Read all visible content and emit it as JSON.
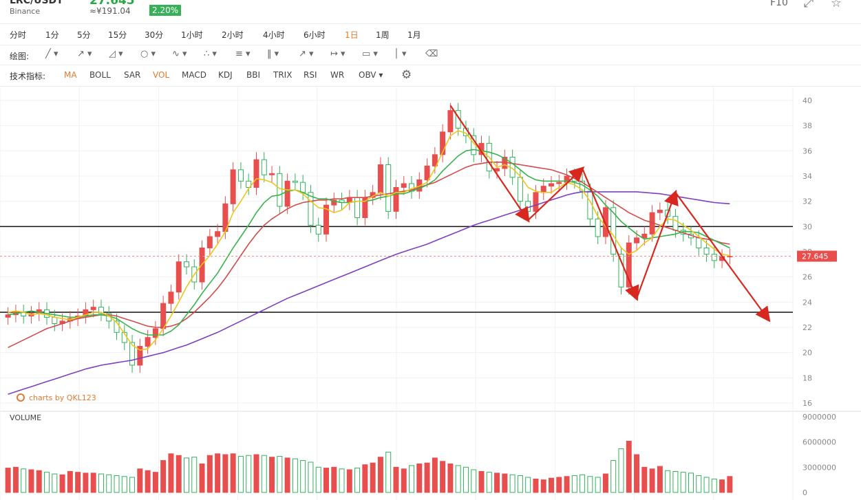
{
  "header": {
    "pair": "LRC/USDT",
    "price": "27.645",
    "exchange": "Binance",
    "cny": "≈¥191.04",
    "change": "2.20%",
    "f10": "F10"
  },
  "timeframes": [
    "分时",
    "1分",
    "5分",
    "15分",
    "30分",
    "1小时",
    "2小时",
    "4小时",
    "6小时",
    "1日",
    "1周",
    "1月"
  ],
  "active_timeframe": "1日",
  "drawing": {
    "label": "绘图:",
    "tools": [
      "line-tool-icon",
      "ray-tool-icon",
      "channel-tool-icon",
      "ellipse-tool-icon",
      "wave-tool-icon",
      "pattern-tool-icon",
      "fib-tool-icon",
      "parallel-tool-icon",
      "arrow-tool-icon",
      "measure-tool-icon",
      "comment-tool-icon",
      "bar-tool-icon",
      "trash-icon"
    ]
  },
  "indicators": {
    "label": "技术指标:",
    "items": [
      "MA",
      "BOLL",
      "SAR",
      "VOL",
      "MACD",
      "KDJ",
      "BBI",
      "TRIX",
      "RSI",
      "WR",
      "OBV"
    ],
    "active": [
      "MA",
      "VOL"
    ]
  },
  "colors": {
    "up": "#e84e4e",
    "down": "#2fb35a",
    "ma5": "#f0c419",
    "ma10": "#37b34a",
    "ma20": "#d24b4b",
    "ma60": "#7b3fbf",
    "arrow": "#d8271f"
  },
  "chart_data": {
    "type": "candlestick",
    "y_range": [
      16,
      40
    ],
    "y_ticks": [
      40,
      38,
      36,
      34,
      32,
      30,
      28,
      26,
      24,
      22,
      20,
      18,
      16
    ],
    "current_price": "27.645",
    "watermark": "charts by QKL123",
    "volume_label": "VOLUME",
    "volume_ticks": [
      "9000000",
      "6000000",
      "3000000",
      "0"
    ],
    "volume_range": [
      0,
      9000000
    ],
    "horizontal_levels": [
      30,
      23.2
    ],
    "closes": [
      23,
      23.2,
      22.9,
      23.1,
      23.4,
      22.8,
      22.3,
      22.5,
      22.7,
      22.9,
      23.4,
      23.6,
      23.1,
      22.5,
      21.6,
      20.8,
      19,
      20.5,
      21.2,
      21.9,
      23.9,
      24.8,
      27.2,
      26.8,
      25.6,
      28.3,
      29.2,
      29.6,
      31.8,
      34.5,
      33.6,
      33.1,
      35.3,
      34.1,
      34.2,
      31.6,
      33.6,
      33.5,
      32.7,
      30.1,
      29.4,
      31.7,
      32.1,
      31.9,
      32.3,
      30.7,
      32.3,
      32.7,
      34.9,
      31.2,
      33.1,
      33.4,
      32.8,
      33.7,
      34.8,
      35.7,
      37.5,
      39.2,
      37.8,
      37.2,
      35.7,
      36.6,
      34.4,
      34.6,
      35.5,
      33.9,
      32,
      31.2,
      32.7,
      33.2,
      33.4,
      33.5,
      34,
      33.6,
      32.8,
      30.6,
      29.2,
      31.5,
      27.8,
      25.2,
      28.7,
      29.1,
      29.4,
      31.1,
      31.3,
      30.8,
      29.7,
      29.4,
      29.1,
      28.3,
      27.8,
      27.3,
      27.6,
      27.645
    ],
    "ma5": [
      23.2,
      23.3,
      23.2,
      23.0,
      23.1,
      23.0,
      22.8,
      22.7,
      22.6,
      22.8,
      23.0,
      23.2,
      23.2,
      22.9,
      22.4,
      21.5,
      20.6,
      20.2,
      20.3,
      21.0,
      21.9,
      22.9,
      24.0,
      25.2,
      26.2,
      27.0,
      27.7,
      28.6,
      29.6,
      31.1,
      32.0,
      33.0,
      33.8,
      33.7,
      33.5,
      33.0,
      32.9,
      32.9,
      32.6,
      32.0,
      31.5,
      31.4,
      31.1,
      31.3,
      31.9,
      32.0,
      32.0,
      32.4,
      32.7,
      32.4,
      32.7,
      32.7,
      33.0,
      33.2,
      33.5,
      34.6,
      35.9,
      37.2,
      37.6,
      37.4,
      36.6,
      36.0,
      35.5,
      34.7,
      34.9,
      34.6,
      34.0,
      33.1,
      32.8,
      32.7,
      32.7,
      33.1,
      33.5,
      33.3,
      32.9,
      32.0,
      30.8,
      30.0,
      29.3,
      28.3,
      27.8,
      28.1,
      28.7,
      29.1,
      30.0,
      30.6,
      30.5,
      30.1,
      29.7,
      29.2,
      28.7,
      28.2,
      27.8,
      27.7
    ],
    "ma10": [
      23.0,
      23.1,
      23.2,
      23.3,
      23.2,
      23.1,
      23.0,
      22.9,
      22.8,
      22.8,
      22.9,
      23.0,
      23.0,
      22.9,
      22.7,
      22.3,
      21.9,
      21.6,
      21.4,
      21.4,
      21.4,
      21.7,
      22.2,
      23.0,
      23.8,
      24.7,
      25.5,
      26.3,
      27.3,
      28.3,
      29.2,
      30.1,
      31.1,
      31.9,
      32.4,
      32.5,
      32.8,
      32.9,
      32.7,
      32.4,
      32.2,
      32.2,
      32.0,
      31.9,
      31.9,
      32.0,
      32.0,
      32.1,
      32.3,
      32.4,
      32.6,
      32.6,
      32.8,
      33.0,
      33.3,
      33.7,
      34.4,
      35.0,
      35.6,
      36.0,
      36.1,
      36.0,
      35.9,
      35.7,
      35.4,
      35.0,
      34.5,
      34.0,
      33.7,
      33.6,
      33.6,
      33.6,
      33.6,
      33.5,
      33.3,
      32.9,
      32.4,
      31.7,
      31.1,
      30.4,
      29.9,
      29.4,
      29.0,
      29.1,
      29.2,
      29.3,
      29.4,
      29.6,
      29.6,
      29.5,
      29.2,
      28.9,
      28.6,
      28.3
    ],
    "ma20": [
      20.4,
      20.7,
      21.0,
      21.3,
      21.6,
      21.9,
      22.1,
      22.3,
      22.5,
      22.7,
      22.8,
      22.9,
      23.0,
      23.0,
      22.9,
      22.7,
      22.5,
      22.3,
      22.1,
      22.0,
      22.0,
      22.1,
      22.3,
      22.7,
      23.2,
      23.8,
      24.4,
      25.1,
      25.9,
      26.8,
      27.7,
      28.6,
      29.4,
      30.1,
      30.6,
      31.0,
      31.4,
      31.7,
      31.9,
      32.0,
      32.1,
      32.1,
      32.2,
      32.2,
      32.3,
      32.3,
      32.3,
      32.4,
      32.5,
      32.6,
      32.7,
      32.8,
      32.9,
      33.1,
      33.3,
      33.5,
      33.8,
      34.1,
      34.4,
      34.7,
      34.9,
      35.0,
      35.1,
      35.1,
      35.1,
      35.0,
      34.9,
      34.8,
      34.7,
      34.6,
      34.5,
      34.3,
      34.1,
      33.8,
      33.5,
      33.1,
      32.7,
      32.3,
      31.9,
      31.5,
      31.1,
      30.8,
      30.5,
      30.3,
      30.1,
      29.9,
      29.7,
      29.5,
      29.3,
      29.1,
      29.0,
      28.9,
      28.7,
      28.6
    ],
    "ma60": [
      16.7,
      16.9,
      17.1,
      17.3,
      17.5,
      17.7,
      17.9,
      18.1,
      18.3,
      18.5,
      18.7,
      18.85,
      19.0,
      19.1,
      19.2,
      19.3,
      19.4,
      19.55,
      19.7,
      19.85,
      20.0,
      20.2,
      20.4,
      20.6,
      20.85,
      21.1,
      21.35,
      21.6,
      21.9,
      22.2,
      22.5,
      22.8,
      23.1,
      23.4,
      23.7,
      24.0,
      24.3,
      24.55,
      24.8,
      25.05,
      25.3,
      25.55,
      25.8,
      26.05,
      26.3,
      26.55,
      26.8,
      27.05,
      27.3,
      27.55,
      27.8,
      28.0,
      28.2,
      28.4,
      28.6,
      28.85,
      29.1,
      29.35,
      29.6,
      29.85,
      30.1,
      30.3,
      30.5,
      30.7,
      30.9,
      31.1,
      31.3,
      31.5,
      31.7,
      31.9,
      32.1,
      32.3,
      32.5,
      32.65,
      32.75,
      32.75,
      32.75,
      32.75,
      32.75,
      32.75,
      32.75,
      32.75,
      32.7,
      32.65,
      32.6,
      32.5,
      32.4,
      32.3,
      32.2,
      32.1,
      32.0,
      31.9,
      31.85,
      31.8
    ],
    "volumes": [
      2900000,
      3000000,
      2800000,
      2700000,
      2600000,
      2400000,
      2200000,
      2100000,
      2500000,
      2400000,
      2300000,
      2300000,
      2200000,
      2100000,
      2000000,
      1900000,
      1800000,
      2800000,
      2600000,
      2400000,
      3800000,
      4600000,
      4400000,
      4100000,
      4200000,
      3400000,
      4400000,
      4600000,
      4500000,
      4600000,
      4300000,
      4400000,
      4500000,
      4400000,
      4200000,
      4300000,
      4100000,
      4000000,
      3800000,
      3600000,
      3000000,
      2900000,
      3000000,
      2800000,
      2700000,
      2900000,
      3300000,
      3500000,
      4200000,
      4800000,
      3000000,
      2800000,
      3200000,
      3400000,
      3500000,
      4100000,
      3700000,
      3400000,
      3200000,
      3000000,
      2700000,
      2500000,
      2400000,
      2300000,
      2200000,
      2100000,
      2000000,
      1800000,
      1600000,
      1500000,
      1700000,
      1800000,
      1900000,
      2000000,
      2100000,
      1900000,
      1800000,
      2200000,
      3800000,
      5200000,
      6100000,
      4500000,
      3000000,
      2800000,
      3100000,
      2600000,
      2500000,
      2400000,
      2300000,
      2000000,
      1800000,
      1600000,
      1500000,
      1900000
    ],
    "arrows": [
      {
        "from": [
          57,
          39.6
        ],
        "to": [
          67,
          30.5
        ]
      },
      {
        "from": [
          67,
          30.5
        ],
        "to": [
          74,
          34.6
        ]
      },
      {
        "from": [
          74,
          34.6
        ],
        "to": [
          81,
          24.3
        ]
      },
      {
        "from": [
          81,
          24.3
        ],
        "to": [
          86,
          32.7
        ]
      },
      {
        "from": [
          86,
          32.7
        ],
        "to": [
          98,
          22.6
        ]
      }
    ]
  }
}
